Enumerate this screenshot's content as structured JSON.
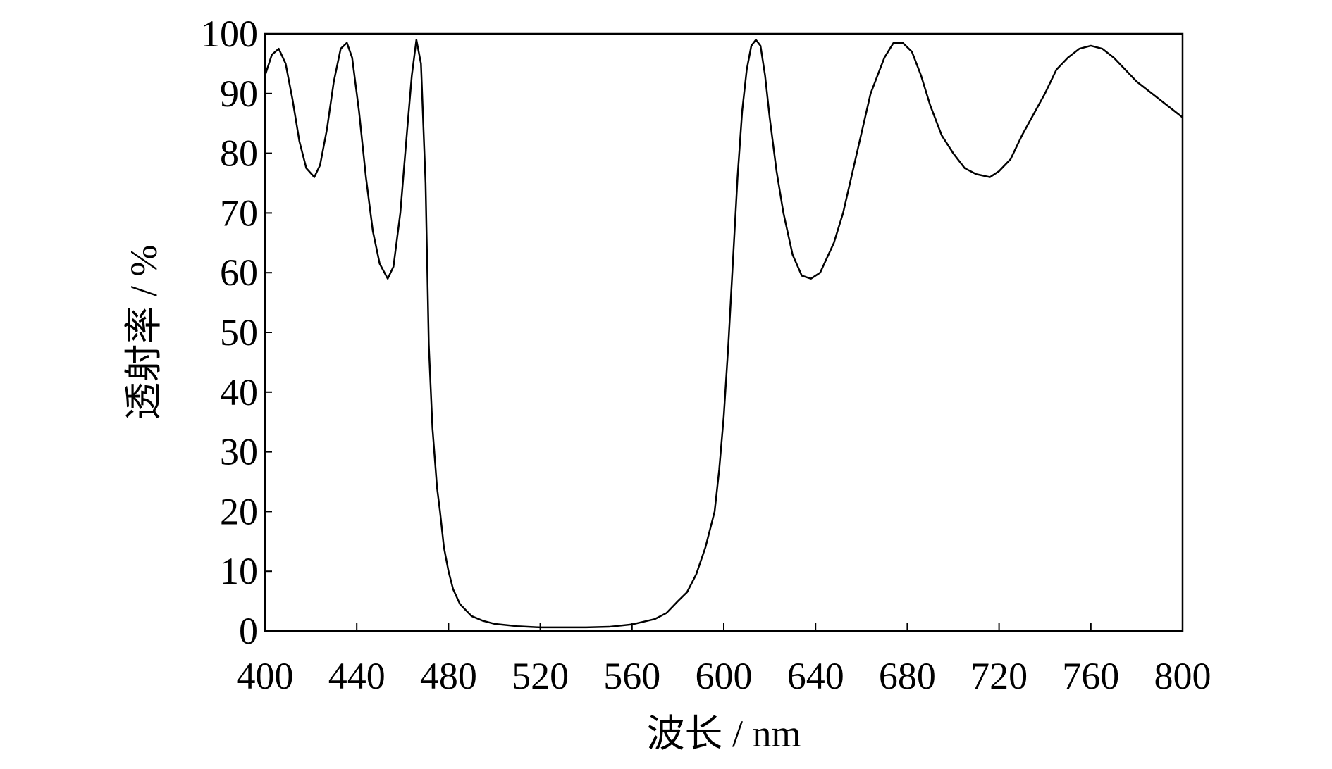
{
  "chart_data": {
    "type": "line",
    "xlabel": "波长 / nm",
    "ylabel": "透射率 / %",
    "xlim": [
      400,
      800
    ],
    "ylim": [
      0,
      100
    ],
    "xticks": [
      400,
      440,
      480,
      520,
      560,
      600,
      640,
      680,
      720,
      760,
      800
    ],
    "yticks": [
      0,
      10,
      20,
      30,
      40,
      50,
      60,
      70,
      80,
      90,
      100
    ],
    "series": [
      {
        "color": "#000000",
        "x": [
          400,
          403,
          406,
          409,
          412,
          415,
          418,
          421.5,
          424,
          427,
          430,
          433,
          435.7,
          438,
          441,
          444,
          447,
          450,
          453.5,
          456,
          459,
          462,
          464,
          466,
          468,
          470,
          471.4,
          473,
          475,
          476.3,
          478,
          480,
          482,
          485,
          490,
          495,
          500,
          510,
          520,
          540,
          550,
          560,
          570,
          575,
          580,
          584,
          588,
          592,
          596,
          598,
          600,
          602,
          604,
          606,
          608,
          610,
          612,
          614,
          616,
          618,
          620,
          623,
          626,
          630,
          634,
          638,
          642,
          648,
          652,
          658,
          664,
          670,
          674,
          678,
          682,
          686,
          690,
          695,
          700,
          705,
          710,
          716,
          720,
          725,
          730,
          735,
          740,
          745,
          750,
          755,
          760,
          765,
          770,
          780,
          790,
          800
        ],
        "values": [
          93,
          96.5,
          97.5,
          95,
          89,
          82,
          77.5,
          76,
          78,
          84,
          92,
          97.5,
          98.5,
          96,
          87,
          76,
          67,
          61.5,
          59,
          61,
          70,
          84,
          93,
          99,
          95,
          75,
          48,
          34,
          24,
          20,
          14,
          10,
          7,
          4.5,
          2.5,
          1.7,
          1.2,
          0.8,
          0.6,
          0.6,
          0.7,
          1.1,
          2,
          3,
          5,
          6.5,
          9.5,
          14,
          20,
          27,
          36,
          48,
          62,
          76,
          87,
          94,
          98,
          99,
          98,
          93,
          86,
          77,
          70,
          63,
          59.5,
          59,
          60,
          65,
          70,
          80,
          90,
          96,
          98.5,
          98.5,
          97,
          93,
          88,
          83,
          80,
          77.5,
          76.5,
          76,
          77,
          79,
          83,
          86.5,
          90,
          94,
          96,
          97.5,
          98,
          97.5,
          96,
          92,
          89,
          86
        ]
      }
    ]
  }
}
